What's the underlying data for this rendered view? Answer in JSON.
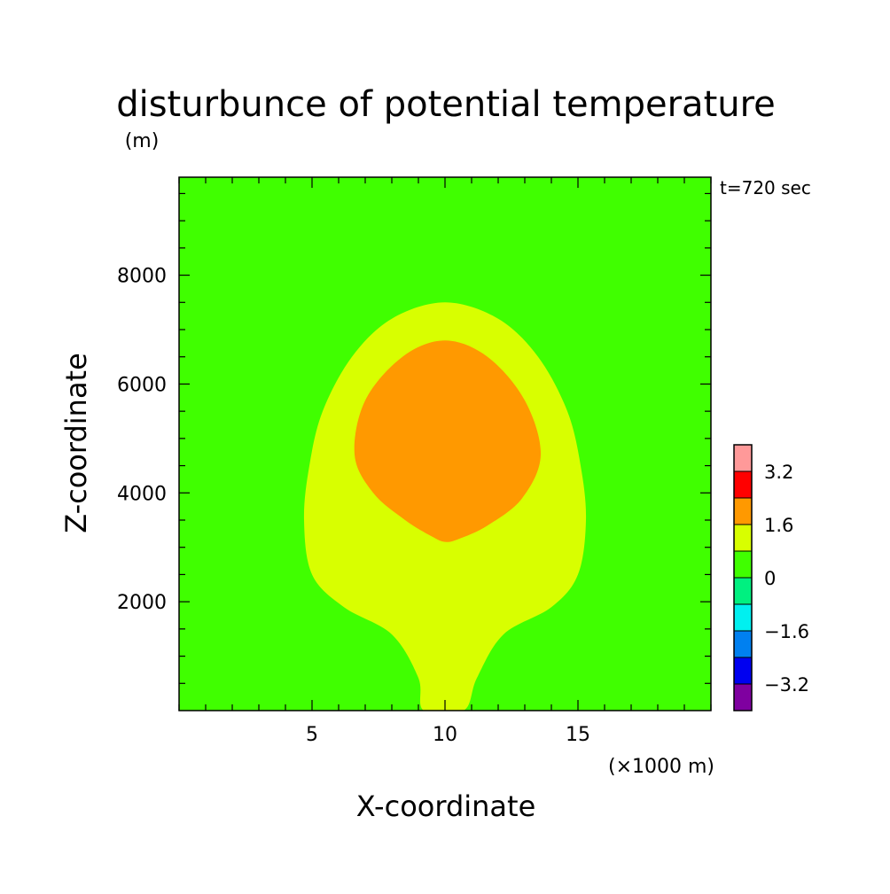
{
  "chart_data": {
    "type": "heatmap",
    "subtype": "filled-contour",
    "title": "disturbunce of potential temperature",
    "title_unit": "(m)",
    "time_label": "t=720 sec",
    "xlabel": "X-coordinate",
    "xlabel_unit": "(×1000 m)",
    "ylabel": "Z-coordinate",
    "xlim": [
      0,
      20
    ],
    "ylim": [
      0,
      9800
    ],
    "x_ticks": [
      5,
      10,
      15
    ],
    "y_ticks": [
      2000,
      4000,
      6000,
      8000
    ],
    "grid": false,
    "colorbar": {
      "position": "right",
      "levels": [
        -4.0,
        -3.2,
        -2.4,
        -1.6,
        -0.8,
        0.0,
        0.8,
        1.6,
        2.4,
        3.2,
        4.0
      ],
      "tick_labels": [
        {
          "value": 3.2,
          "text": "3.2"
        },
        {
          "value": 1.6,
          "text": "1.6"
        },
        {
          "value": 0.0,
          "text": "0"
        },
        {
          "value": -1.6,
          "text": "−1.6"
        },
        {
          "value": -3.2,
          "text": "−3.2"
        }
      ],
      "colors": [
        "#7f00a0",
        "#0000f0",
        "#0080f0",
        "#00f0f0",
        "#00f080",
        "#40ff00",
        "#d8ff00",
        "#ff9900",
        "#ff0000",
        "#ff9999"
      ]
    },
    "background_color": "#40ff00",
    "contour_regions": [
      {
        "interval": [
          0.0,
          0.8
        ],
        "color": "#40ff00",
        "note": "background"
      },
      {
        "interval": [
          0.8,
          1.6
        ],
        "color": "#d8ff00",
        "outline": [
          [
            9.2,
            0
          ],
          [
            9.0,
            600
          ],
          [
            8.0,
            1400
          ],
          [
            6.2,
            1900
          ],
          [
            5.0,
            2500
          ],
          [
            4.7,
            3500
          ],
          [
            4.9,
            4500
          ],
          [
            5.4,
            5500
          ],
          [
            6.5,
            6500
          ],
          [
            8.0,
            7200
          ],
          [
            10.0,
            7500
          ],
          [
            12.0,
            7200
          ],
          [
            13.5,
            6500
          ],
          [
            14.6,
            5500
          ],
          [
            15.1,
            4500
          ],
          [
            15.3,
            3500
          ],
          [
            15.0,
            2500
          ],
          [
            14.0,
            1900
          ],
          [
            12.2,
            1400
          ],
          [
            11.2,
            600
          ],
          [
            10.7,
            0
          ]
        ]
      },
      {
        "interval": [
          1.6,
          2.4
        ],
        "color": "#ff9900",
        "outline": [
          [
            10.0,
            3100
          ],
          [
            9.5,
            3200
          ],
          [
            8.5,
            3500
          ],
          [
            7.3,
            4000
          ],
          [
            6.6,
            4700
          ],
          [
            7.0,
            5700
          ],
          [
            8.4,
            6500
          ],
          [
            10.0,
            6800
          ],
          [
            11.6,
            6500
          ],
          [
            13.0,
            5700
          ],
          [
            13.6,
            4700
          ],
          [
            12.9,
            3900
          ],
          [
            11.6,
            3400
          ],
          [
            10.5,
            3150
          ]
        ]
      }
    ]
  }
}
